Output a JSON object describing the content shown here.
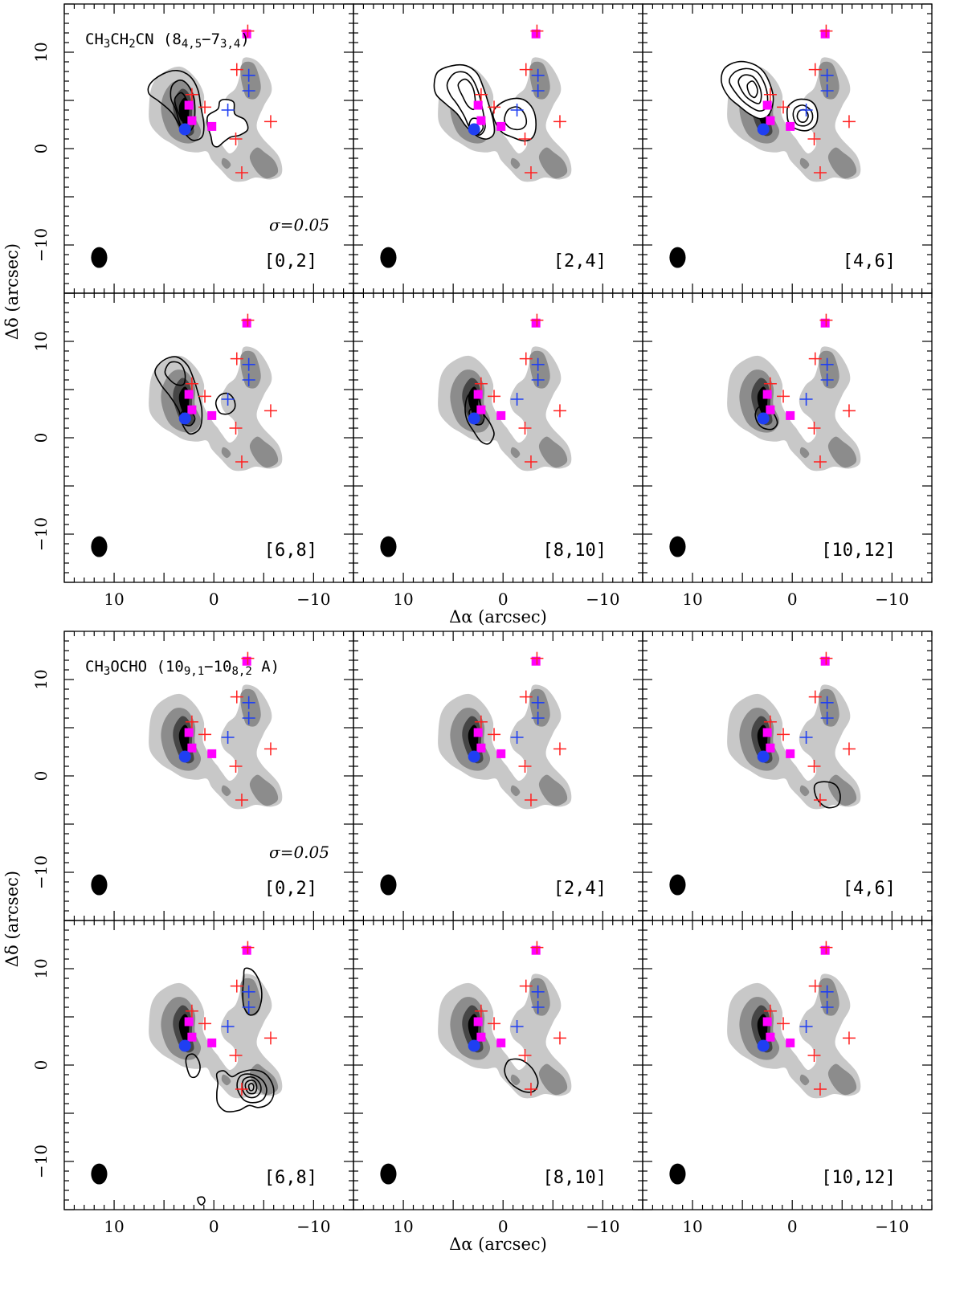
{
  "figure": {
    "xlabel": "Δα (arcsec)",
    "ylabel": "Δδ (arcsec)",
    "xlim": [
      15,
      -14
    ],
    "ylim": [
      -15,
      15
    ],
    "xticks": [
      10,
      0,
      -10
    ],
    "yticks": [
      10,
      0,
      -10
    ],
    "colors": {
      "continuum_light": "#c8c8c8",
      "continuum_mid": "#8c8c8c",
      "continuum_dark": "#464646",
      "continuum_core": "#000000",
      "red_cross": "#ff2020",
      "blue_cross": "#1f3ff2",
      "magenta_square": "#ff00ff",
      "blue_dot": "#1f3ff2"
    }
  },
  "blocks": [
    {
      "molecule": {
        "prefix": "CH",
        "s1": "3",
        "mid": "CH",
        "s2": "2",
        "suffix": "CN (8",
        "sub1": "4,5",
        "dash": "−7",
        "sub2": "3,4",
        "close": ")"
      },
      "sigma_label": "σ=0.05",
      "panels": [
        "[0,2]",
        "[2,4]",
        "[4,6]",
        "[6,8]",
        "[8,10]",
        "[10,12]"
      ]
    },
    {
      "molecule": {
        "prefix": "CH",
        "s1": "3",
        "mid": "OCHO (10",
        "s2": "9,1",
        "suffix": "−10",
        "sub1": "8,2",
        "dash": " A)",
        "sub2": "",
        "close": ""
      },
      "sigma_label": "σ=0.05",
      "panels": [
        "[0,2]",
        "[2,4]",
        "[4,6]",
        "[6,8]",
        "[8,10]",
        "[10,12]"
      ]
    }
  ],
  "chart_data": {
    "type": "contour",
    "title": "",
    "xlabel": "Δα (arcsec)",
    "ylabel": "Δδ (arcsec)",
    "xlim": [
      15,
      -14
    ],
    "ylim": [
      -15,
      15
    ],
    "sigma": 0.05,
    "velocity_ranges": [
      "[0,2]",
      "[2,4]",
      "[4,6]",
      "[6,8]",
      "[8,10]",
      "[10,12]"
    ],
    "red_crosses": [
      [
        2.2,
        5.6
      ],
      [
        -2.3,
        8.2
      ],
      [
        -3.4,
        12.2
      ],
      [
        0.9,
        4.3
      ],
      [
        -2.2,
        1.0
      ],
      [
        -5.7,
        2.8
      ],
      [
        -2.8,
        -2.5
      ]
    ],
    "blue_crosses": [
      [
        -1.4,
        4.0
      ],
      [
        -3.5,
        7.6
      ],
      [
        -3.5,
        6.0
      ]
    ],
    "magenta_squares": [
      [
        2.5,
        4.5
      ],
      [
        2.2,
        2.9
      ],
      [
        0.2,
        2.3
      ],
      [
        -3.3,
        11.9
      ]
    ],
    "blue_dots": [
      [
        2.9,
        2.0
      ]
    ],
    "beam": {
      "x": 11.5,
      "y": -11.3,
      "major_arcsec": 1.6,
      "minor_arcsec": 1.2
    },
    "molecules": [
      {
        "name": "CH3CH2CN (8_4,5-7_3,4)",
        "panels_with_emission": [
          "[0,2]",
          "[2,4]",
          "[4,6]",
          "[6,8]",
          "[8,10]",
          "[10,12]"
        ]
      },
      {
        "name": "CH3OCHO (10_9,1-10_8,2 A)",
        "panels_with_emission": [
          "[4,6]",
          "[6,8]",
          "[8,10]"
        ]
      }
    ]
  }
}
